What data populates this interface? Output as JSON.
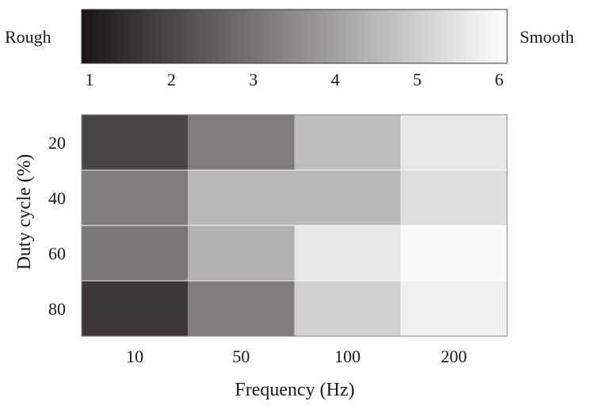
{
  "chart_data": {
    "type": "heatmap",
    "title": "",
    "xlabel": "Frequency (Hz)",
    "ylabel": "Duty cycle (%)",
    "x_categories": [
      "10",
      "50",
      "100",
      "200"
    ],
    "y_categories": [
      "20",
      "40",
      "60",
      "80"
    ],
    "values": [
      [
        2.0,
        3.2,
        4.6,
        5.5
      ],
      [
        3.2,
        4.5,
        4.5,
        5.3
      ],
      [
        3.1,
        4.3,
        5.5,
        5.9
      ],
      [
        1.7,
        3.2,
        5.0,
        5.7
      ]
    ],
    "colorbar": {
      "min_label": "Rough",
      "max_label": "Smooth",
      "ticks": [
        "1",
        "2",
        "3",
        "4",
        "5",
        "6"
      ],
      "range": [
        1,
        6
      ],
      "color_low": "#1c1515",
      "color_high": "#ffffff"
    },
    "grid": false
  }
}
